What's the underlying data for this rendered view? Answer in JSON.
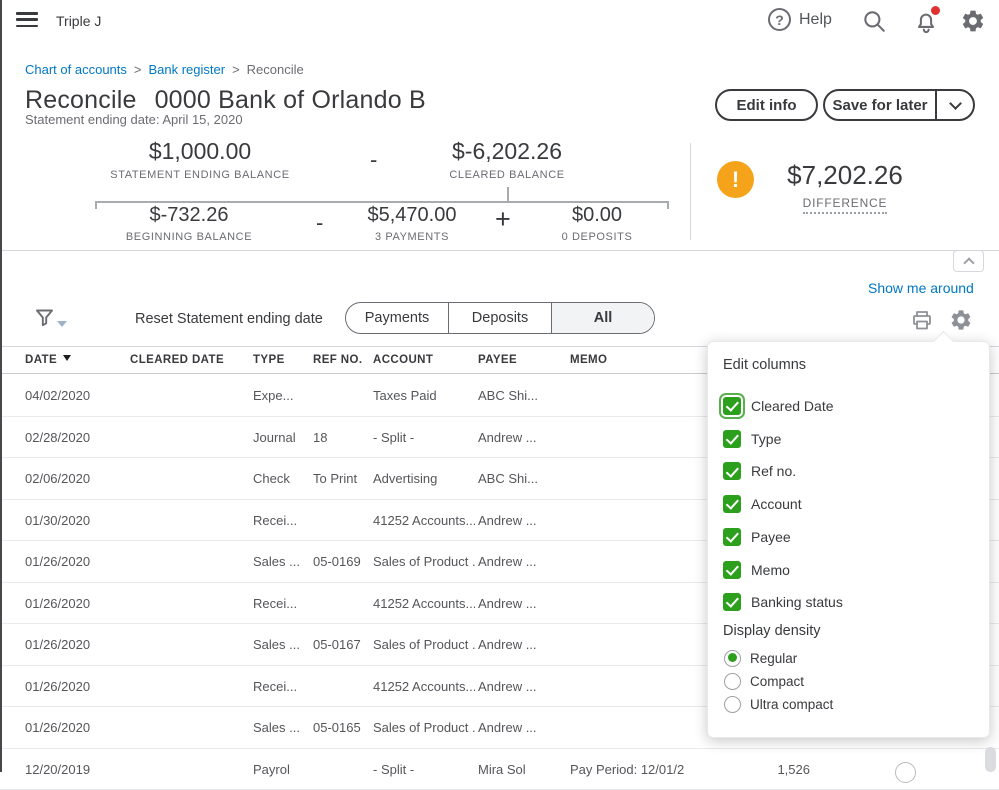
{
  "topbar": {
    "company": "Triple J",
    "help_label": "Help"
  },
  "breadcrumb": {
    "items": [
      "Chart of accounts",
      "Bank register",
      "Reconcile"
    ],
    "separator": ">"
  },
  "header": {
    "title": "Reconcile",
    "account": "0000 Bank of Orlando B",
    "subtitle": "Statement ending date: April 15, 2020",
    "edit_info_label": "Edit info",
    "save_for_later_label": "Save for later"
  },
  "summary": {
    "statement_ending": {
      "amount": "$1,000.00",
      "label": "STATEMENT ENDING BALANCE"
    },
    "op1": "-",
    "cleared": {
      "amount": "$-6,202.26",
      "label": "CLEARED BALANCE"
    },
    "beginning": {
      "amount": "$-732.26",
      "label": "BEGINNING BALANCE"
    },
    "op2": "-",
    "payments": {
      "amount": "$5,470.00",
      "label": "3 PAYMENTS"
    },
    "op3": "+",
    "deposits": {
      "amount": "$0.00",
      "label": "0 DEPOSITS"
    },
    "difference": {
      "amount": "$7,202.26",
      "label": "DIFFERENCE",
      "warning_glyph": "!"
    }
  },
  "toolbar": {
    "show_me_around": "Show me around",
    "reset_label": "Reset Statement ending date",
    "tabs": [
      {
        "label": "Payments",
        "active": false
      },
      {
        "label": "Deposits",
        "active": false
      },
      {
        "label": "All",
        "active": true
      }
    ]
  },
  "table": {
    "headers": [
      "DATE",
      "CLEARED DATE",
      "TYPE",
      "REF NO.",
      "ACCOUNT",
      "PAYEE",
      "MEMO"
    ],
    "sorted_by": "DATE",
    "rows": [
      {
        "date": "04/02/2020",
        "cleared": "",
        "type": "Expe...",
        "ref": "",
        "account": "Taxes Paid",
        "payee": "ABC Shi...",
        "memo": "",
        "payment": "",
        "circle": false
      },
      {
        "date": "02/28/2020",
        "cleared": "",
        "type": "Journal",
        "ref": "18",
        "account": "- Split -",
        "payee": "Andrew ...",
        "memo": "",
        "payment": "",
        "circle": false
      },
      {
        "date": "02/06/2020",
        "cleared": "",
        "type": "Check",
        "ref": "To Print",
        "account": "Advertising",
        "payee": "ABC Shi...",
        "memo": "",
        "payment": "",
        "circle": false
      },
      {
        "date": "01/30/2020",
        "cleared": "",
        "type": "Recei...",
        "ref": "",
        "account": "41252 Accounts...",
        "payee": "Andrew ...",
        "memo": "",
        "payment": "",
        "circle": false
      },
      {
        "date": "01/26/2020",
        "cleared": "",
        "type": "Sales ...",
        "ref": "05-0169",
        "account": "Sales of Product ...",
        "payee": "Andrew ...",
        "memo": "",
        "payment": "",
        "circle": false
      },
      {
        "date": "01/26/2020",
        "cleared": "",
        "type": "Recei...",
        "ref": "",
        "account": "41252 Accounts...",
        "payee": "Andrew ...",
        "memo": "",
        "payment": "",
        "circle": false
      },
      {
        "date": "01/26/2020",
        "cleared": "",
        "type": "Sales ...",
        "ref": "05-0167",
        "account": "Sales of Product ...",
        "payee": "Andrew ...",
        "memo": "",
        "payment": "",
        "circle": false
      },
      {
        "date": "01/26/2020",
        "cleared": "",
        "type": "Recei...",
        "ref": "",
        "account": "41252 Accounts...",
        "payee": "Andrew ...",
        "memo": "",
        "payment": "",
        "circle": false
      },
      {
        "date": "01/26/2020",
        "cleared": "",
        "type": "Sales ...",
        "ref": "05-0165",
        "account": "Sales of Product ...",
        "payee": "Andrew ...",
        "memo": "",
        "payment": "",
        "circle": false
      },
      {
        "date": "12/20/2019",
        "cleared": "",
        "type": "Payrol",
        "ref": "",
        "account": "- Split -",
        "payee": "Mira Sol",
        "memo": "Pay Period: 12/01/2",
        "payment": "1,526",
        "circle": true
      }
    ]
  },
  "edit_columns": {
    "title": "Edit columns",
    "checkboxes": [
      {
        "label": "Cleared Date",
        "checked": true,
        "focused": true
      },
      {
        "label": "Type",
        "checked": true,
        "focused": false
      },
      {
        "label": "Ref no.",
        "checked": true,
        "focused": false
      },
      {
        "label": "Account",
        "checked": true,
        "focused": false
      },
      {
        "label": "Payee",
        "checked": true,
        "focused": false
      },
      {
        "label": "Memo",
        "checked": true,
        "focused": false
      },
      {
        "label": "Banking status",
        "checked": true,
        "focused": false
      }
    ],
    "density_label": "Display density",
    "density_options": [
      {
        "label": "Regular",
        "selected": true
      },
      {
        "label": "Compact",
        "selected": false
      },
      {
        "label": "Ultra compact",
        "selected": false
      }
    ]
  },
  "colors": {
    "link_blue": "#0077C5",
    "qb_green": "#2CA01C",
    "warning_orange": "#F5A31A",
    "alert_red": "#E03131",
    "text_dark": "#393A3D",
    "text_gray": "#6B6C72"
  }
}
